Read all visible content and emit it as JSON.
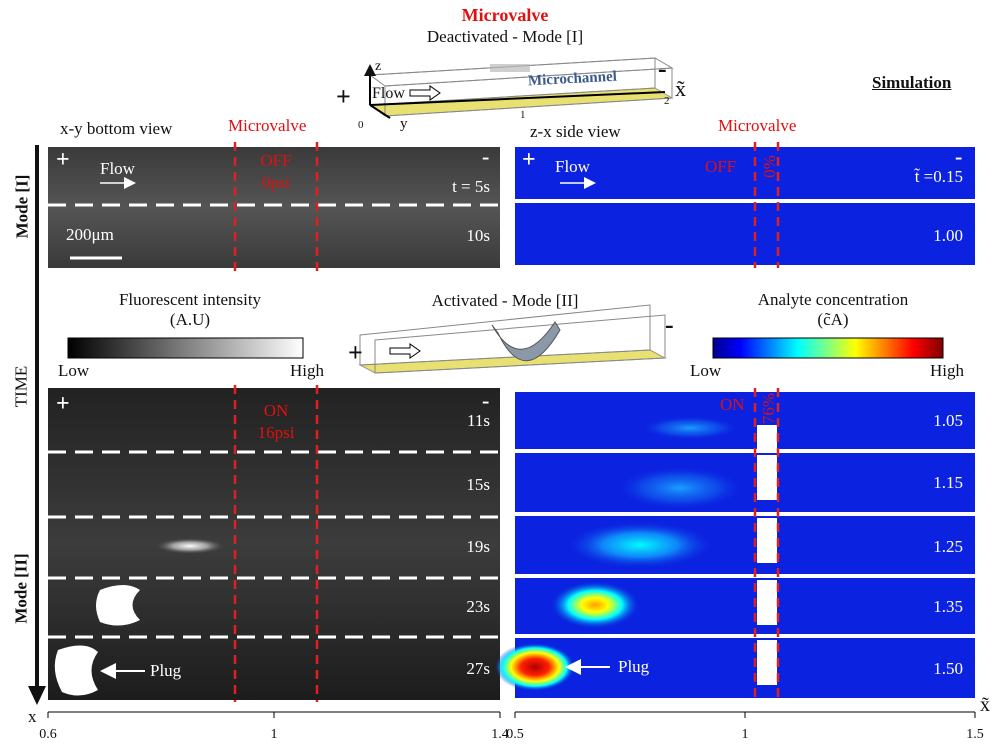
{
  "header": {
    "valve_label": "Microvalve",
    "mode1": "Deactivated - Mode [I]",
    "mode2": "Activated - Mode [II]",
    "simulation": "Simulation"
  },
  "schematic": {
    "z": "z",
    "y": "y",
    "x": "x̃",
    "flow": "Flow",
    "channel": "Microchannel",
    "plus": "+",
    "minus": "-",
    "ticks": [
      "0",
      "1",
      "2"
    ],
    "plus2": "+",
    "minus2": "-"
  },
  "experiment": {
    "view": "x-y bottom view",
    "valve": "Microvalve",
    "plus": "+",
    "minus": "-",
    "flow": "Flow",
    "off": "OFF",
    "off_pressure": "0psi",
    "on": "ON",
    "on_pressure": "16psi",
    "plus2": "+",
    "minus2": "-",
    "scale": "200μm",
    "times_mode1": [
      "t = 5s",
      "10s"
    ],
    "times_mode2": [
      "11s",
      "15s",
      "19s",
      "23s",
      "27s"
    ],
    "plug": "Plug",
    "colorbar": {
      "title": "Fluorescent intensity (A.U)",
      "low": "Low",
      "high": "High"
    },
    "axis": {
      "label": "x",
      "ticks": [
        0.6,
        1,
        1.4
      ]
    }
  },
  "simulation": {
    "view": "z-x  side view",
    "valve": "Microvalve",
    "plus": "+",
    "minus": "-",
    "flow": "Flow",
    "off": "OFF",
    "off_opening": "0%",
    "on": "ON",
    "on_opening": "76%",
    "times_mode1": [
      "t̃ =0.15",
      "1.00"
    ],
    "times_mode2": [
      "1.05",
      "1.15",
      "1.25",
      "1.35",
      "1.50"
    ],
    "plug": "Plug",
    "colorbar": {
      "title": "Analyte concentration (c̃A)",
      "low": "Low",
      "high": "High"
    },
    "axis": {
      "label": "x̃",
      "ticks": [
        0.5,
        1,
        1.5
      ]
    }
  },
  "side": {
    "mode1": "Mode [I]",
    "time": "TIME",
    "mode2": "Mode [II]"
  }
}
